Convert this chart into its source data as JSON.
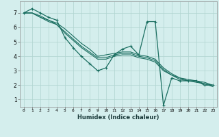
{
  "xlabel": "Humidex (Indice chaleur)",
  "bg_color": "#d4eeed",
  "grid_color": "#b0d4d0",
  "line_color": "#1a6e60",
  "xlim": [
    -0.5,
    23.5
  ],
  "ylim": [
    0.5,
    7.8
  ],
  "xticks": [
    0,
    1,
    2,
    3,
    4,
    5,
    6,
    7,
    8,
    9,
    10,
    11,
    12,
    13,
    14,
    15,
    16,
    17,
    18,
    19,
    20,
    21,
    22,
    23
  ],
  "yticks": [
    1,
    2,
    3,
    4,
    5,
    6,
    7
  ],
  "series": [
    [
      7.0,
      7.3,
      7.0,
      6.7,
      6.5,
      5.3,
      4.6,
      4.0,
      3.5,
      3.0,
      3.2,
      4.1,
      4.5,
      4.7,
      4.1,
      6.4,
      6.4,
      0.6,
      2.5,
      2.3,
      2.3,
      2.3,
      2.0,
      2.0
    ],
    [
      7.0,
      7.0,
      6.8,
      6.5,
      6.3,
      5.9,
      5.4,
      4.9,
      4.5,
      4.0,
      4.1,
      4.2,
      4.3,
      4.3,
      4.1,
      4.0,
      3.8,
      3.2,
      2.8,
      2.5,
      2.4,
      2.3,
      2.2,
      2.0
    ],
    [
      7.0,
      7.0,
      6.7,
      6.5,
      6.2,
      5.7,
      5.2,
      4.7,
      4.3,
      3.9,
      3.9,
      4.1,
      4.2,
      4.2,
      4.0,
      3.9,
      3.7,
      3.1,
      2.7,
      2.5,
      2.3,
      2.3,
      2.1,
      2.0
    ],
    [
      7.0,
      7.0,
      6.7,
      6.4,
      6.2,
      5.6,
      5.1,
      4.6,
      4.2,
      3.8,
      3.8,
      4.0,
      4.1,
      4.1,
      3.9,
      3.8,
      3.6,
      3.0,
      2.7,
      2.4,
      2.3,
      2.2,
      2.1,
      1.9
    ]
  ]
}
